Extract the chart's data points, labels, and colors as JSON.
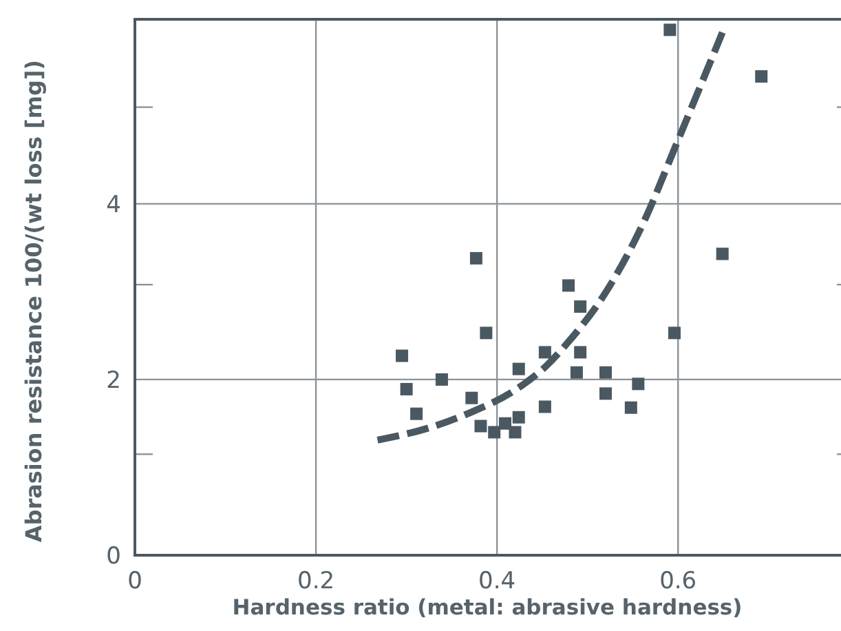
{
  "chart_data": {
    "type": "scatter",
    "xlabel": "Hardness ratio (metal: abrasive hardness)",
    "ylabel": "Abrasion resistance 100/(wt loss [mg])",
    "xlim": [
      0,
      0.78
    ],
    "ylim": [
      0,
      6.1
    ],
    "xticks": [
      0,
      0.2,
      0.4,
      0.6
    ],
    "yticks": [
      0,
      {
        "value": 1.15,
        "label": null
      },
      2,
      {
        "value": 3.08,
        "label": null
      },
      4,
      {
        "value": 5.1,
        "label": null
      }
    ],
    "grid": true,
    "marker": "square",
    "series": [
      {
        "color": "#4a5861",
        "x": [
          0.591,
          0.692,
          0.649,
          0.596,
          0.377,
          0.479,
          0.492,
          0.388,
          0.295,
          0.453,
          0.492,
          0.424,
          0.488,
          0.52,
          0.3,
          0.339,
          0.372,
          0.556,
          0.52,
          0.311,
          0.453,
          0.548,
          0.382,
          0.409,
          0.424,
          0.397,
          0.42
        ],
        "values": [
          5.98,
          5.45,
          3.43,
          2.53,
          3.38,
          3.07,
          2.83,
          2.53,
          2.27,
          2.31,
          2.31,
          2.12,
          2.08,
          2.08,
          1.89,
          2.0,
          1.79,
          1.95,
          1.84,
          1.61,
          1.69,
          1.68,
          1.47,
          1.5,
          1.57,
          1.4,
          1.4
        ]
      },
      {
        "type": "line",
        "color": "#4a5861",
        "line_style": "dashed",
        "marker": "none",
        "x": [
          0.268,
          0.325,
          0.372,
          0.42,
          0.455,
          0.479,
          0.52,
          0.562,
          0.597,
          0.649
        ],
        "values": [
          1.31,
          1.45,
          1.63,
          1.88,
          2.16,
          2.43,
          2.99,
          3.79,
          4.65,
          5.95
        ]
      }
    ]
  }
}
